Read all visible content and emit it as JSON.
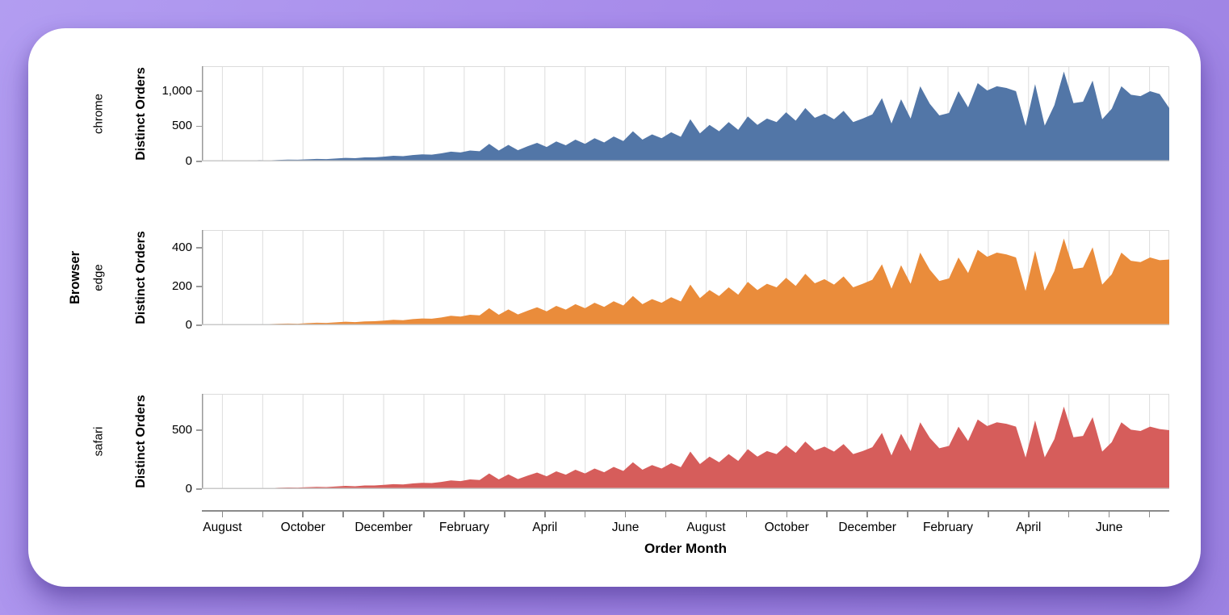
{
  "page": {
    "background_color": "#A78BEA",
    "card_color": "#FFFFFF"
  },
  "chart_data": {
    "type": "area",
    "layout": "faceted-rows",
    "facet_field": "Browser",
    "x_label": "Order Month",
    "y_label": "Distinct Orders",
    "x_granularity": "weekly",
    "x_months_shown": 24,
    "x_tick_labels": [
      "August",
      "October",
      "December",
      "February",
      "April",
      "June",
      "August",
      "October",
      "December",
      "February",
      "April",
      "June"
    ],
    "grid": true,
    "legend": "none",
    "facets": [
      {
        "name": "chrome",
        "color": "#5276A7",
        "y_max": 1356,
        "y_ticks": [
          {
            "value": 0,
            "label": "0"
          },
          {
            "value": 500,
            "label": "500"
          },
          {
            "value": 1000,
            "label": "1,000"
          }
        ],
        "values": [
          6,
          9,
          12,
          10,
          14,
          13,
          18,
          16,
          22,
          26,
          24,
          30,
          36,
          33,
          42,
          50,
          46,
          58,
          58,
          68,
          80,
          74,
          90,
          100,
          96,
          115,
          140,
          128,
          155,
          145,
          250,
          155,
          235,
          160,
          215,
          265,
          205,
          285,
          230,
          310,
          250,
          330,
          270,
          355,
          290,
          430,
          310,
          385,
          330,
          415,
          350,
          600,
          400,
          520,
          430,
          560,
          450,
          640,
          520,
          610,
          560,
          700,
          580,
          760,
          620,
          680,
          600,
          720,
          560,
          610,
          670,
          900,
          540,
          885,
          610,
          1070,
          820,
          655,
          690,
          1000,
          770,
          1115,
          1010,
          1070,
          1045,
          1000,
          505,
          1100,
          510,
          800,
          1280,
          830,
          850,
          1150,
          600,
          750,
          1070,
          950,
          930,
          1000,
          960,
          760
        ]
      },
      {
        "name": "edge",
        "color": "#EA8C3B",
        "y_max": 492,
        "y_ticks": [
          {
            "value": 0,
            "label": "0"
          },
          {
            "value": 200,
            "label": "200"
          },
          {
            "value": 400,
            "label": "400"
          }
        ],
        "values": [
          2,
          3,
          4,
          4,
          5,
          5,
          6,
          6,
          8,
          9,
          8,
          11,
          13,
          12,
          15,
          18,
          16,
          20,
          21,
          24,
          28,
          26,
          32,
          35,
          34,
          40,
          49,
          45,
          54,
          51,
          88,
          54,
          82,
          56,
          75,
          93,
          72,
          100,
          81,
          109,
          88,
          116,
          95,
          124,
          102,
          151,
          109,
          135,
          116,
          145,
          123,
          210,
          140,
          182,
          151,
          196,
          158,
          224,
          182,
          214,
          196,
          245,
          203,
          266,
          217,
          238,
          210,
          252,
          196,
          214,
          235,
          315,
          189,
          310,
          214,
          375,
          287,
          229,
          242,
          350,
          270,
          390,
          354,
          375,
          366,
          350,
          177,
          385,
          179,
          280,
          448,
          291,
          298,
          403,
          210,
          263,
          375,
          333,
          326,
          350,
          336,
          340
        ]
      },
      {
        "name": "safari",
        "color": "#D65D5B",
        "y_max": 808,
        "y_ticks": [
          {
            "value": 0,
            "label": "0"
          },
          {
            "value": 500,
            "label": "500"
          }
        ],
        "values": [
          3,
          5,
          6,
          5,
          7,
          7,
          10,
          8,
          12,
          14,
          13,
          16,
          19,
          17,
          22,
          27,
          24,
          31,
          31,
          36,
          42,
          39,
          48,
          53,
          51,
          61,
          74,
          68,
          82,
          77,
          133,
          82,
          125,
          85,
          114,
          140,
          109,
          151,
          122,
          164,
          133,
          175,
          143,
          188,
          154,
          228,
          164,
          204,
          175,
          220,
          186,
          318,
          212,
          276,
          228,
          297,
          239,
          339,
          276,
          323,
          297,
          371,
          307,
          403,
          329,
          360,
          318,
          382,
          297,
          323,
          355,
          477,
          286,
          469,
          323,
          567,
          435,
          347,
          366,
          530,
          408,
          591,
          535,
          567,
          554,
          530,
          268,
          583,
          270,
          424,
          700,
          440,
          451,
          610,
          318,
          398,
          567,
          504,
          493,
          530,
          509,
          500
        ]
      }
    ]
  }
}
